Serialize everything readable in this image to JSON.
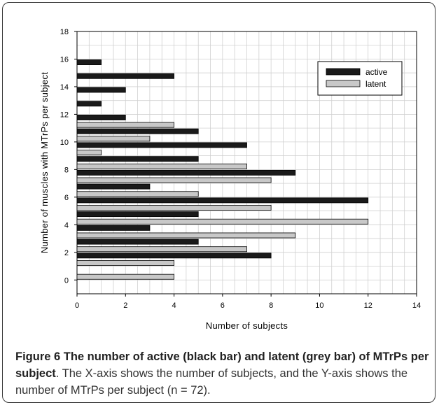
{
  "chart_data": {
    "type": "bar",
    "orientation": "horizontal",
    "xlabel": "Number of subjects",
    "ylabel": "Number of muscles with MTrPs per subject",
    "xlim": [
      0,
      14
    ],
    "ylim": [
      -1,
      18
    ],
    "xticks": [
      "0",
      "2",
      "4",
      "6",
      "8",
      "10",
      "12",
      "14"
    ],
    "yticks": [
      "0",
      "2",
      "4",
      "6",
      "8",
      "10",
      "12",
      "14",
      "16",
      "18"
    ],
    "grid": true,
    "legend_position": "top-right",
    "categories": [
      0,
      1,
      2,
      3,
      4,
      5,
      6,
      7,
      8,
      9,
      10,
      11,
      12,
      13,
      14,
      15,
      16
    ],
    "series": [
      {
        "name": "active",
        "color": "#1a1a1a",
        "values": [
          0,
          0,
          8,
          5,
          3,
          5,
          12,
          3,
          9,
          5,
          7,
          5,
          2,
          1,
          2,
          4,
          1
        ]
      },
      {
        "name": "latent",
        "color": "#c8c8c8",
        "values": [
          4,
          4,
          7,
          9,
          12,
          8,
          5,
          8,
          7,
          1,
          3,
          4,
          0,
          0,
          0,
          0,
          0
        ]
      }
    ]
  },
  "caption": {
    "bold": "Figure 6 The number of active (black bar) and latent (grey bar) of MTrPs per subject",
    "text": ". The X-axis shows the number of subjects, and the Y-axis shows the number of MTrPs per subject (n = 72)."
  }
}
